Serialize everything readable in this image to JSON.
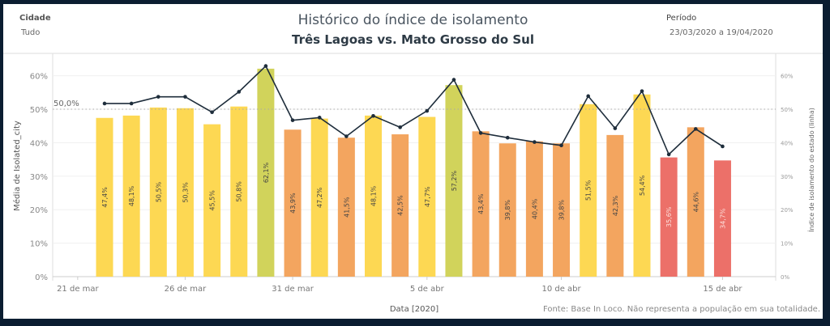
{
  "filters": {
    "city_label": "Cidade",
    "city_value": "Tudo",
    "period_label": "Período",
    "period_value": "23/03/2020 a 19/04/2020"
  },
  "chart_data": {
    "type": "bar+line",
    "title": "Histórico do índice de isolamento",
    "subtitle": "Três Lagoas vs. Mato Grosso do Sul",
    "xlabel": "Data [2020]",
    "ylabel": "Média de Isolated_city",
    "y2label": "Índice de isolamento do estado (linha)",
    "ylim": [
      0,
      65
    ],
    "yticks": [
      "0%",
      "10%",
      "20%",
      "30%",
      "40%",
      "50%",
      "60%"
    ],
    "reference_line": {
      "value": 50,
      "label": "50,0%"
    },
    "bar_values": [
      47.4,
      48.1,
      50.5,
      50.3,
      45.5,
      50.8,
      62.1,
      43.9,
      47.2,
      41.5,
      48.1,
      42.5,
      47.7,
      57.2,
      43.4,
      39.8,
      40.4,
      39.8,
      51.5,
      42.3,
      54.4,
      35.6,
      44.6,
      34.7
    ],
    "bar_labels": [
      "47,4%",
      "48,1%",
      "50,5%",
      "50,3%",
      "45,5%",
      "50,8%",
      "62,1%",
      "43,9%",
      "47,2%",
      "41,5%",
      "48,1%",
      "42,5%",
      "47,7%",
      "57,2%",
      "43,4%",
      "39,8%",
      "40,4%",
      "39,8%",
      "51,5%",
      "42,3%",
      "54,4%",
      "35,6%",
      "44,6%",
      "34,7%"
    ],
    "line_values": [
      51.7,
      51.7,
      53.7,
      53.7,
      49.1,
      55.2,
      62.9,
      46.7,
      47.5,
      41.9,
      48.0,
      44.6,
      49.5,
      58.8,
      42.9,
      41.5,
      40.2,
      39.2,
      53.9,
      44.3,
      55.4,
      36.5,
      44.1,
      38.9
    ],
    "xticks": [
      {
        "label": "21 de mar",
        "bar_index": -1
      },
      {
        "label": "26 de mar",
        "bar_index": 3
      },
      {
        "label": "31 de mar",
        "bar_index": 7
      },
      {
        "label": "5 de abr",
        "bar_index": 12
      },
      {
        "label": "10 de abr",
        "bar_index": 17
      },
      {
        "label": "15 de abr",
        "bar_index": 23
      }
    ],
    "colors": {
      "high": "#d1d35b",
      "mid": "#fdd853",
      "low": "#f3a55f",
      "lowest": "#ec7069",
      "line": "#1e2d3b"
    },
    "grid": true
  },
  "source": "Fonte: Base In Loco. Não representa a população em sua totalidade."
}
